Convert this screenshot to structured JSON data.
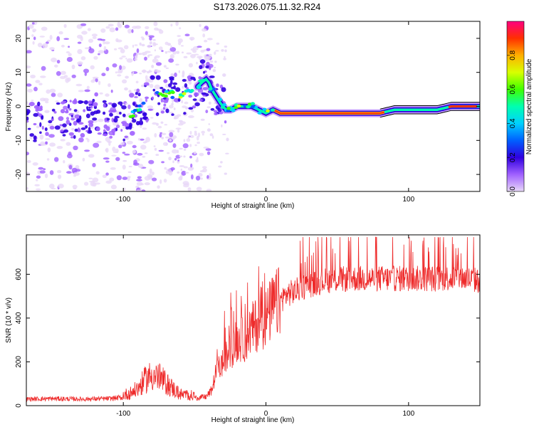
{
  "title": "S173.2026.075.11.32.R24",
  "chart_data": [
    {
      "type": "heatmap",
      "name": "spectrogram",
      "title": "S173.2026.075.11.32.R24",
      "xlabel": "Height of straight line (km)",
      "ylabel": "Frequency (Hz)",
      "xlim": [
        -168,
        150
      ],
      "ylim": [
        -25,
        25
      ],
      "xticks": [
        -100,
        0,
        100
      ],
      "yticks": [
        -20,
        -10,
        0,
        10,
        20
      ],
      "ridge": {
        "x": [
          -168,
          -150,
          -130,
          -115,
          -100,
          -90,
          -80,
          -70,
          -60,
          -50,
          -45,
          -42,
          -40,
          -38,
          -35,
          -32,
          -28,
          -25,
          -20,
          -15,
          -10,
          -5,
          0,
          5,
          10,
          20,
          40,
          60,
          80,
          90,
          100,
          110,
          120,
          130,
          140,
          148
        ],
        "y": [
          -4,
          -5,
          -3,
          -2,
          -5,
          -1,
          3,
          4,
          3,
          5,
          7,
          8,
          7,
          5,
          3,
          1,
          -1,
          -1,
          0,
          0,
          0,
          -1,
          -2,
          -1,
          -2,
          -2,
          -2,
          -2,
          -2,
          -1,
          -1,
          -1,
          -1,
          0,
          0,
          0
        ]
      },
      "colorbar": {
        "label": "Normalized spectral amplitude",
        "range": [
          0,
          1
        ],
        "ticks": [
          "0.0",
          "0.2",
          "0.4",
          "0.6",
          "0.8"
        ],
        "colors": [
          "#e8d8f8",
          "#a060ff",
          "#3000e0",
          "#0060ff",
          "#00d0ff",
          "#00ffb0",
          "#40ff00",
          "#d8ff00",
          "#ffb000",
          "#ff3000",
          "#ff0080"
        ]
      }
    },
    {
      "type": "line",
      "name": "snr",
      "xlabel": "Height of straight line (km)",
      "ylabel": "SNR (10 * v/v)",
      "xlim": [
        -168,
        150
      ],
      "ylim": [
        0,
        780
      ],
      "xticks": [
        -100,
        0,
        100
      ],
      "yticks": [
        0,
        200,
        400,
        600
      ],
      "color": "#ee2a2a",
      "envelope": {
        "x": [
          -168,
          -150,
          -130,
          -110,
          -100,
          -95,
          -90,
          -85,
          -80,
          -75,
          -70,
          -65,
          -60,
          -50,
          -42,
          -38,
          -35,
          -30,
          -25,
          -20,
          -15,
          -10,
          -5,
          0,
          5,
          10,
          15,
          20,
          25,
          30,
          40,
          60,
          80,
          100,
          120,
          135,
          150
        ],
        "y": [
          30,
          32,
          30,
          32,
          38,
          45,
          60,
          90,
          110,
          100,
          80,
          60,
          40,
          35,
          40,
          70,
          150,
          200,
          250,
          300,
          300,
          350,
          380,
          400,
          450,
          480,
          510,
          520,
          540,
          550,
          570,
          580,
          580,
          580,
          580,
          585,
          570
        ]
      }
    }
  ]
}
